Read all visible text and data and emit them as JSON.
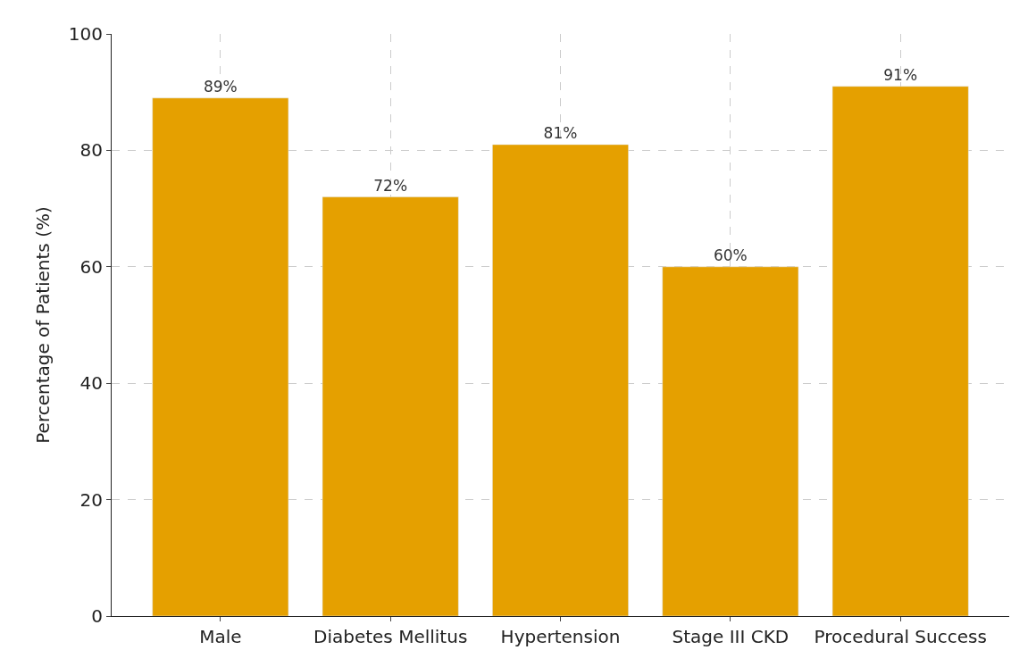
{
  "chart_data": {
    "type": "bar",
    "ylabel": "Percentage of Patients (%)",
    "categories": [
      "Male",
      "Diabetes Mellitus",
      "Hypertension",
      "Stage III CKD",
      "Procedural Success"
    ],
    "values": [
      89,
      72,
      81,
      60,
      91
    ],
    "value_labels": [
      "89%",
      "72%",
      "81%",
      "60%",
      "91%"
    ],
    "color": "#e5a000",
    "ylim": [
      0,
      100
    ],
    "yticks": [
      0,
      20,
      40,
      60,
      80,
      100
    ],
    "grid": true
  }
}
